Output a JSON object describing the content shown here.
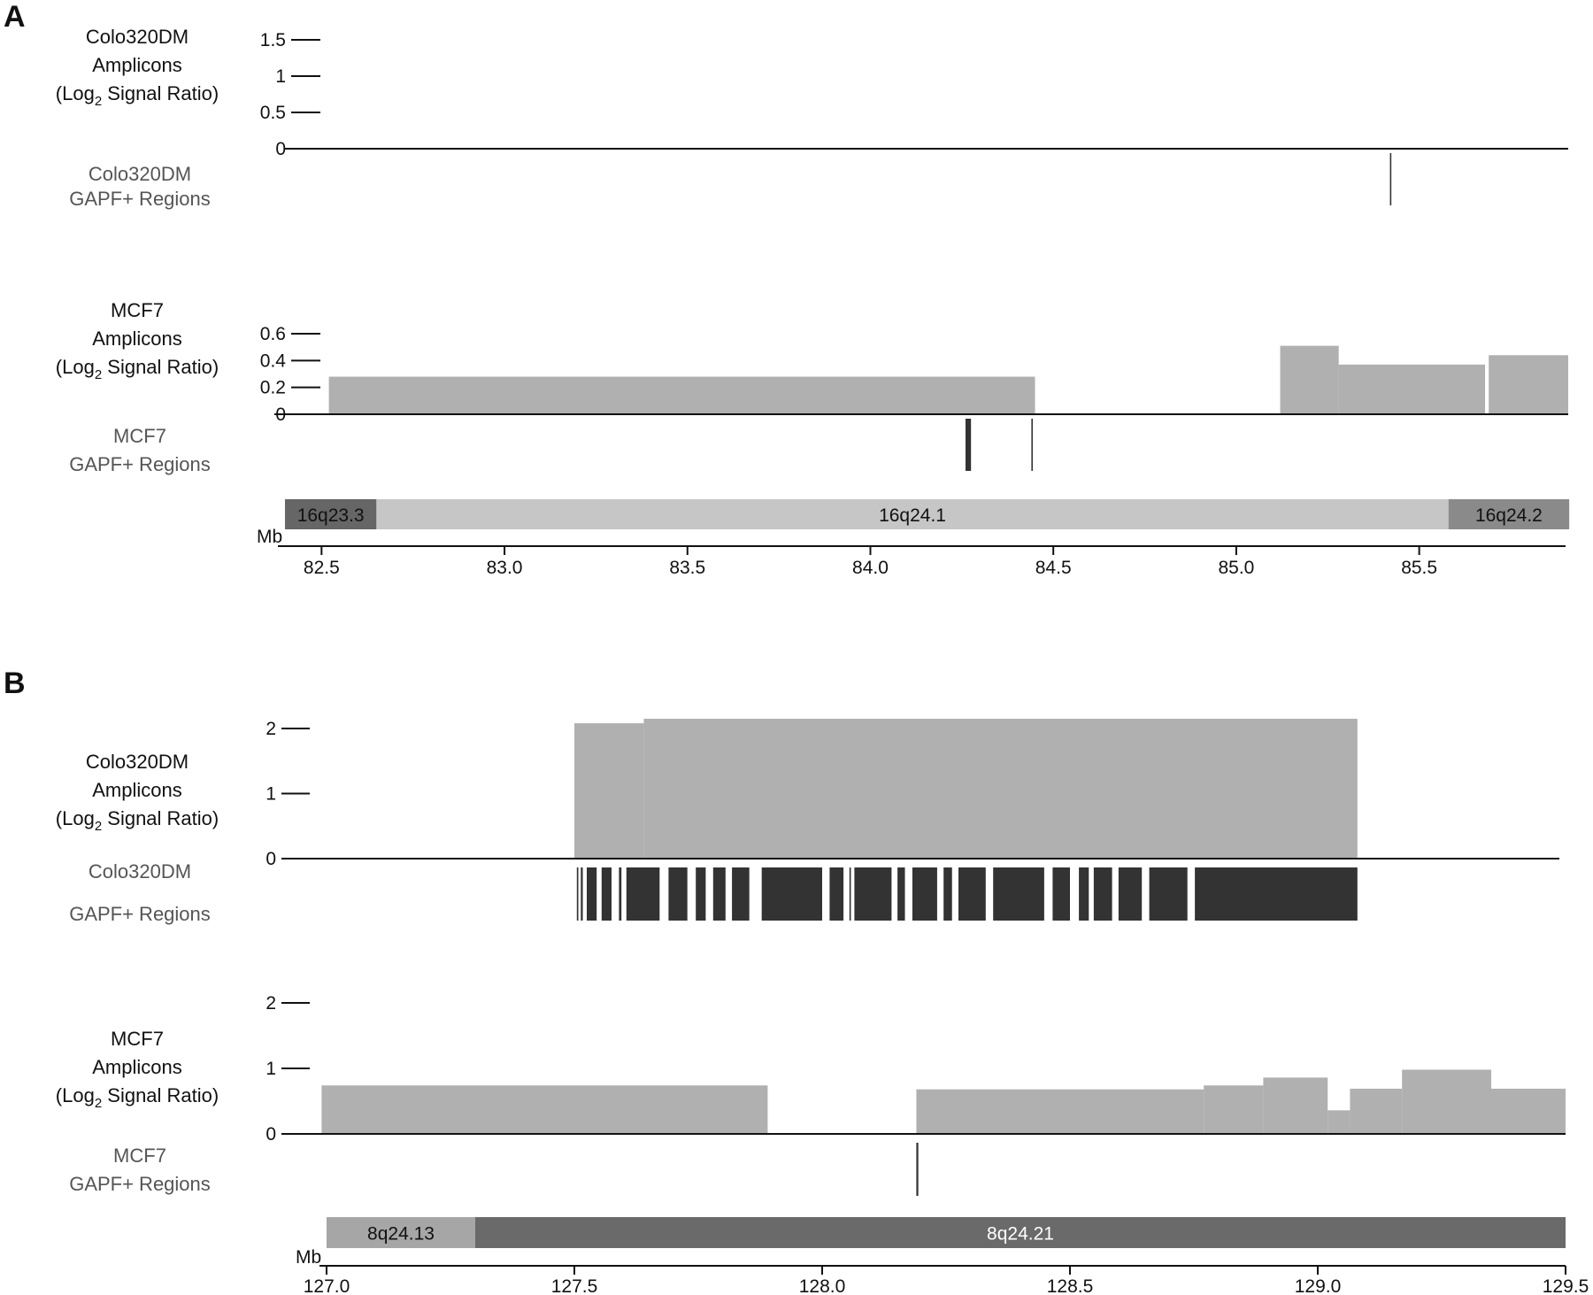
{
  "chart_data": [
    {
      "panel": "A",
      "type": "area",
      "x_unit": "Mb",
      "x_ticks": [
        "82.5",
        "83.0",
        "83.5",
        "84.0",
        "84.5",
        "85.0",
        "85.5"
      ],
      "xlim": [
        82.4,
        85.9
      ],
      "tracks": [
        {
          "kind": "amplicon",
          "label": [
            "Colo320DM",
            "Amplicons",
            "(Log",
            "2",
            " Signal Ratio)"
          ],
          "ylim": [
            0,
            1.5
          ],
          "y_ticks": [
            "1.5",
            "1",
            "0.5",
            "0"
          ],
          "segments": []
        },
        {
          "kind": "regions",
          "label": [
            "Colo320DM",
            "GAPF+ Regions"
          ],
          "regions": [
            [
              85.42,
              85.423
            ]
          ]
        },
        {
          "kind": "amplicon",
          "label": [
            "MCF7",
            "Amplicons",
            "(Log",
            "2",
            " Signal Ratio)"
          ],
          "ylim": [
            0,
            0.6
          ],
          "y_ticks": [
            "0.6",
            "0.4",
            "0.2",
            "0"
          ],
          "segments": [
            [
              82.52,
              84.45,
              0.28
            ],
            [
              85.12,
              85.28,
              0.51
            ],
            [
              85.28,
              85.68,
              0.37
            ],
            [
              85.69,
              85.93,
              0.44
            ]
          ]
        },
        {
          "kind": "regions",
          "label": [
            "MCF7",
            "GAPF+ Regions"
          ],
          "regions": [
            [
              84.26,
              84.275
            ],
            [
              84.44,
              84.443
            ]
          ]
        }
      ],
      "ideogram": [
        {
          "band": "16q23.3",
          "start": 82.4,
          "end": 82.65,
          "color": "#666666",
          "text_color": "#111111"
        },
        {
          "band": "16q24.1",
          "start": 82.65,
          "end": 85.58,
          "color": "#c6c6c6",
          "text_color": "#111111"
        },
        {
          "band": "16q24.2",
          "start": 85.58,
          "end": 85.91,
          "color": "#8a8a8a",
          "text_color": "#111111"
        }
      ]
    },
    {
      "panel": "B",
      "type": "area",
      "x_unit": "Mb",
      "x_ticks": [
        "127.0",
        "127.5",
        "128.0",
        "128.5",
        "129.0",
        "129.5"
      ],
      "xlim": [
        127.0,
        129.5
      ],
      "tracks": [
        {
          "kind": "amplicon",
          "label": [
            "Colo320DM",
            "Amplicons",
            "(Log",
            "2",
            " Signal Ratio)"
          ],
          "ylim": [
            0,
            2
          ],
          "y_ticks": [
            "2",
            "1",
            "0"
          ],
          "segments": [
            [
              127.5,
              127.64,
              2.08
            ],
            [
              127.64,
              129.08,
              2.15
            ]
          ]
        },
        {
          "kind": "regions",
          "label": [
            "Colo320DM",
            "GAPF+ Regions"
          ],
          "regions": [
            [
              127.505,
              127.508
            ],
            [
              127.513,
              127.517
            ],
            [
              127.525,
              127.545
            ],
            [
              127.555,
              127.575
            ],
            [
              127.59,
              127.595
            ],
            [
              127.605,
              127.672
            ],
            [
              127.69,
              127.728
            ],
            [
              127.745,
              127.765
            ],
            [
              127.78,
              127.805
            ],
            [
              127.818,
              127.853
            ],
            [
              127.878,
              128.0
            ],
            [
              128.015,
              128.043
            ],
            [
              128.055,
              128.058
            ],
            [
              128.065,
              128.14
            ],
            [
              128.152,
              128.167
            ],
            [
              128.182,
              128.232
            ],
            [
              128.245,
              128.262
            ],
            [
              128.275,
              128.33
            ],
            [
              128.345,
              128.448
            ],
            [
              128.465,
              128.5
            ],
            [
              128.518,
              128.538
            ],
            [
              128.548,
              128.585
            ],
            [
              128.598,
              128.645
            ],
            [
              128.66,
              128.737
            ],
            [
              128.752,
              129.08
            ]
          ]
        },
        {
          "kind": "amplicon",
          "label": [
            "MCF7",
            "Amplicons",
            "(Log",
            "2",
            " Signal Ratio)"
          ],
          "ylim": [
            0,
            2
          ],
          "y_ticks": [
            "2",
            "1",
            "0"
          ],
          "segments": [
            [
              126.99,
              127.89,
              0.74
            ],
            [
              128.19,
              128.77,
              0.68
            ],
            [
              128.77,
              128.89,
              0.74
            ],
            [
              128.89,
              129.02,
              0.86
            ],
            [
              129.02,
              129.065,
              0.36
            ],
            [
              129.065,
              129.17,
              0.69
            ],
            [
              129.17,
              129.35,
              0.98
            ],
            [
              129.35,
              129.5,
              0.69
            ]
          ]
        },
        {
          "kind": "regions",
          "label": [
            "MCF7",
            "GAPF+ Regions"
          ],
          "regions": [
            [
              128.19,
              128.194
            ]
          ]
        }
      ],
      "ideogram": [
        {
          "band": "8q24.13",
          "start": 127.0,
          "end": 127.3,
          "color": "#a6a6a6",
          "text_color": "#111111"
        },
        {
          "band": "8q24.21",
          "start": 127.3,
          "end": 129.5,
          "color": "#6a6a6a",
          "text_color": "#ffffff"
        }
      ]
    }
  ]
}
